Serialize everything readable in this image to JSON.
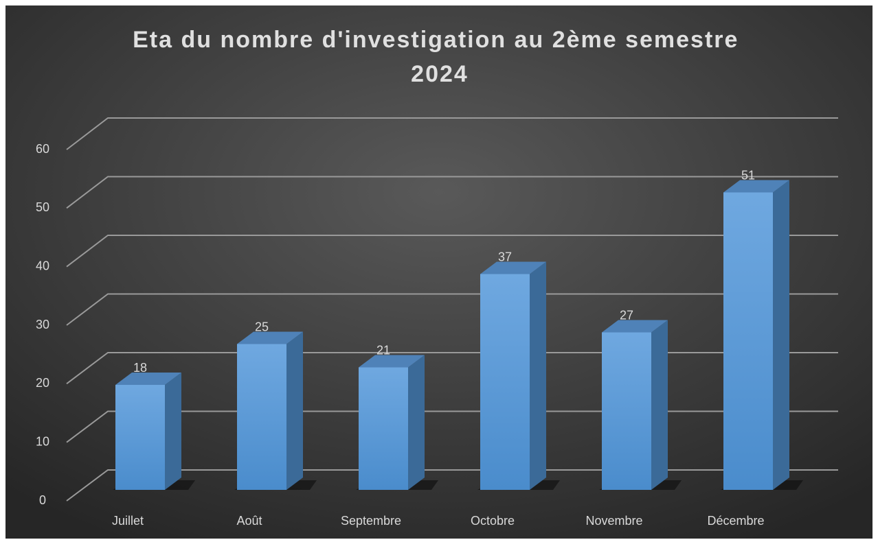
{
  "chart_data": {
    "type": "bar",
    "title": "Eta du nombre d'investigation au 2ème semestre 2024",
    "categories": [
      "Juillet",
      "Août",
      "Septembre",
      "Octobre",
      "Novembre",
      "Décembre"
    ],
    "values": [
      18,
      25,
      21,
      37,
      27,
      51
    ],
    "color": "#5b9bd5",
    "ylim": [
      0,
      60
    ],
    "yticks": [
      0,
      10,
      20,
      30,
      40,
      50,
      60
    ],
    "grid": true
  }
}
